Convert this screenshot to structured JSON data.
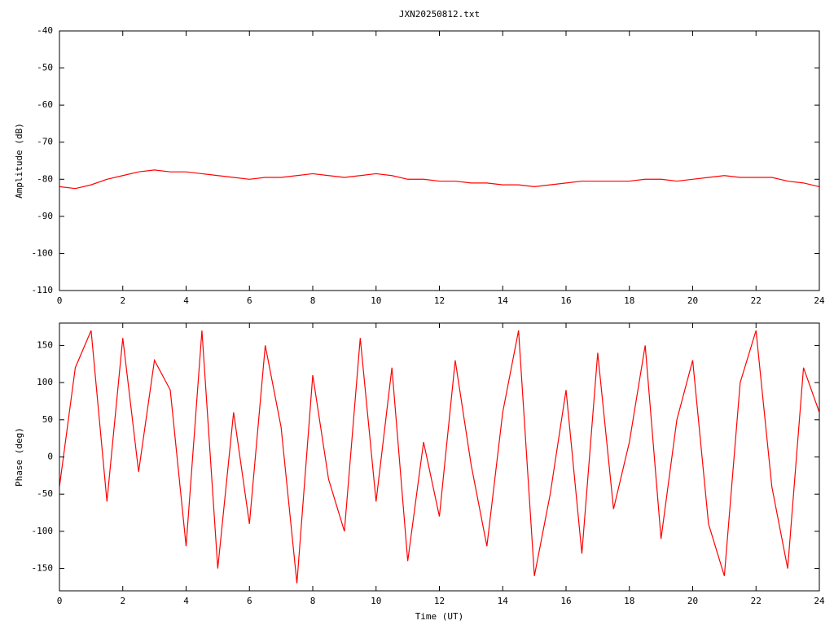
{
  "chart_data": [
    {
      "type": "line",
      "title": "JXN20250812.txt",
      "ylabel": "Amplitude (dB)",
      "color": "#ff0000",
      "x": [
        0,
        0.5,
        1,
        1.5,
        2,
        2.5,
        3,
        3.5,
        4,
        4.5,
        5,
        5.5,
        6,
        6.5,
        7,
        7.5,
        8,
        8.5,
        9,
        9.5,
        10,
        10.5,
        11,
        11.5,
        12,
        12.5,
        13,
        13.5,
        14,
        14.5,
        15,
        15.5,
        16,
        16.5,
        17,
        17.5,
        18,
        18.5,
        19,
        19.5,
        20,
        20.5,
        21,
        21.5,
        22,
        22.5,
        23,
        23.5,
        24
      ],
      "values": [
        -82,
        -82.5,
        -81.5,
        -80,
        -79,
        -78,
        -77.5,
        -78,
        -78,
        -78.5,
        -79,
        -79.5,
        -80,
        -79.5,
        -79.5,
        -79,
        -78.5,
        -79,
        -79.5,
        -79,
        -78.5,
        -79,
        -80,
        -80,
        -80.5,
        -80.5,
        -81,
        -81,
        -81.5,
        -81.5,
        -82,
        -81.5,
        -81,
        -80.5,
        -80.5,
        -80.5,
        -80.5,
        -80,
        -80,
        -80.5,
        -80,
        -79.5,
        -79,
        -79.5,
        -79.5,
        -79.5,
        -80.5,
        -81,
        -82
      ],
      "xlim": [
        0,
        24
      ],
      "xticks": [
        0,
        2,
        4,
        6,
        8,
        10,
        12,
        14,
        16,
        18,
        20,
        22,
        24
      ],
      "ylim": [
        -110,
        -40
      ],
      "yticks": [
        -40,
        -50,
        -60,
        -70,
        -80,
        -90,
        -100,
        -110
      ]
    },
    {
      "type": "line",
      "xlabel": "Time (UT)",
      "ylabel": "Phase (deg)",
      "color": "#ff0000",
      "x": [
        0,
        0.5,
        1,
        1.5,
        2,
        2.5,
        3,
        3.5,
        4,
        4.5,
        5,
        5.5,
        6,
        6.5,
        7,
        7.5,
        8,
        8.5,
        9,
        9.5,
        10,
        10.5,
        11,
        11.5,
        12,
        12.5,
        13,
        13.5,
        14,
        14.5,
        15,
        15.5,
        16,
        16.5,
        17,
        17.5,
        18,
        18.5,
        19,
        19.5,
        20,
        20.5,
        21,
        21.5,
        22,
        22.5,
        23,
        23.5,
        24
      ],
      "values": [
        -40,
        120,
        170,
        -60,
        160,
        -20,
        130,
        90,
        -120,
        170,
        -150,
        60,
        -90,
        150,
        40,
        -170,
        110,
        -30,
        -100,
        160,
        -60,
        120,
        -140,
        20,
        -80,
        130,
        -10,
        -120,
        60,
        170,
        -160,
        -50,
        90,
        -130,
        140,
        -70,
        20,
        150,
        -110,
        50,
        130,
        -90,
        -160,
        100,
        170,
        -40,
        -150,
        120,
        60
      ],
      "xlim": [
        0,
        24
      ],
      "xticks": [
        0,
        2,
        4,
        6,
        8,
        10,
        12,
        14,
        16,
        18,
        20,
        22,
        24
      ],
      "ylim": [
        -180,
        180
      ],
      "yticks": [
        -150,
        -100,
        -50,
        0,
        50,
        100,
        150
      ]
    }
  ]
}
